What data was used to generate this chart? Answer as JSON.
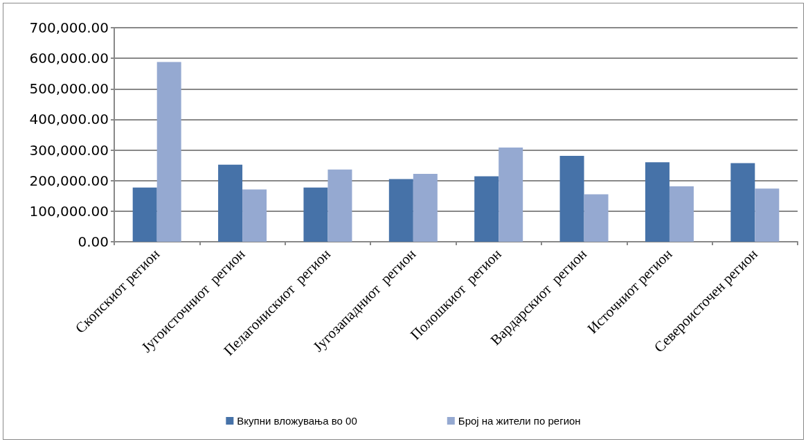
{
  "chart_data": {
    "type": "bar",
    "categories": [
      "Скопскиот регион",
      "Југоисточниот  регион",
      "Пелагонискиот  регион",
      "Југозападниот  регион",
      "Полошкиот  регион",
      "Вардарскиот  регион",
      "Источниот регион",
      "Североисточен регион"
    ],
    "series": [
      {
        "name": "Вкупни вложувања во 00",
        "color": "#4672a8",
        "values": [
          177000,
          252000,
          177000,
          205000,
          214000,
          281000,
          260000,
          257000
        ]
      },
      {
        "name": "Број на жители по регион",
        "color": "#95a9d1",
        "values": [
          588000,
          171000,
          236000,
          222000,
          308000,
          155000,
          181000,
          174000
        ]
      }
    ],
    "ylim": [
      0,
      700000
    ],
    "yticks": [
      {
        "value": 0,
        "label": "0.00"
      },
      {
        "value": 100000,
        "label": "100,000.00"
      },
      {
        "value": 200000,
        "label": "200,000.00"
      },
      {
        "value": 300000,
        "label": "300,000.00"
      },
      {
        "value": 400000,
        "label": "400,000.00"
      },
      {
        "value": 500000,
        "label": "500,000.00"
      },
      {
        "value": 600000,
        "label": "600,000.00"
      },
      {
        "value": 700000,
        "label": "700,000.00"
      }
    ],
    "grid": "y",
    "legend": "bottom"
  }
}
